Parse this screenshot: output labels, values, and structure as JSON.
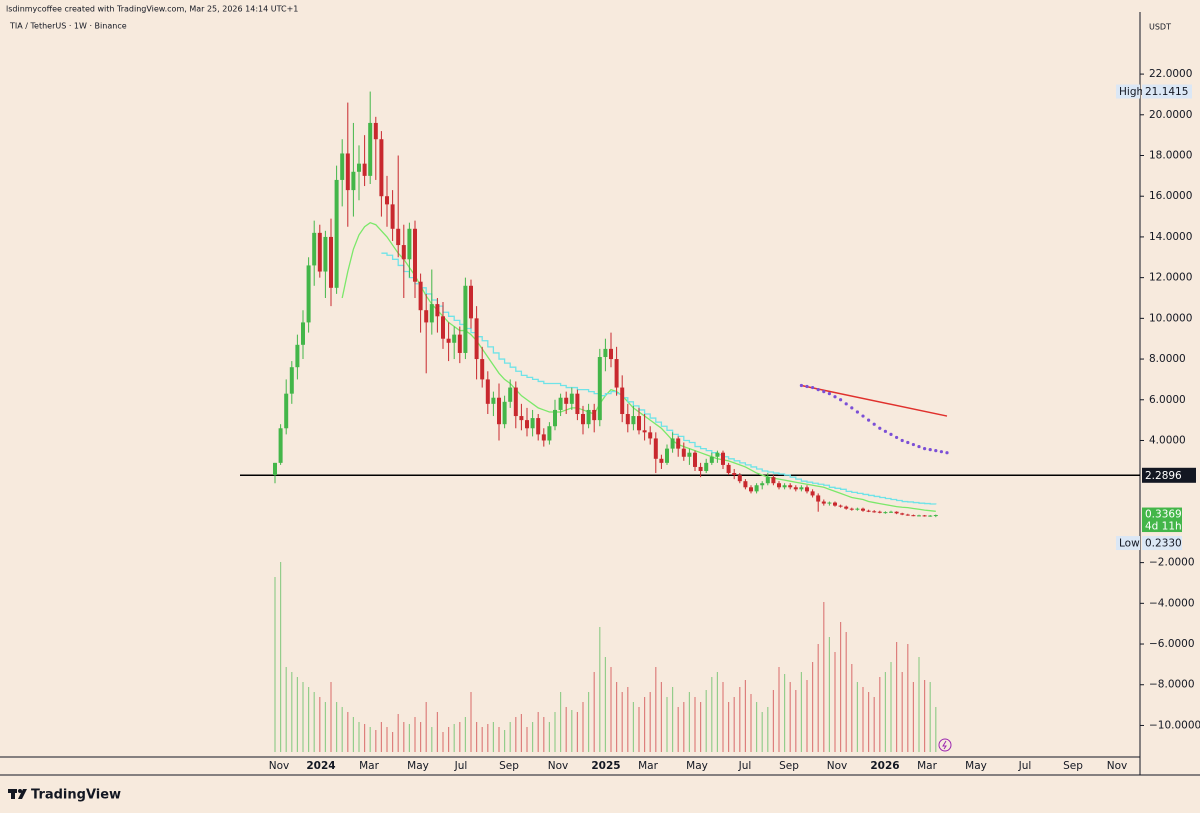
{
  "chart_data": {
    "type": "candlestick",
    "header": "lsdinmycoffee created with TradingView.com, Mar 25, 2026 14:14 UTC+1",
    "title": "TIA / TetherUS · 1W · Binance",
    "currency": "USDT",
    "brand": "TradingView",
    "up_color": "#43b649",
    "down_color": "#c8282e",
    "ylim": [
      -11.55,
      25.05
    ],
    "yticks": [
      {
        "value": 22,
        "label": "22.0000"
      },
      {
        "value": 20,
        "label": "20.0000"
      },
      {
        "value": 18,
        "label": "18.0000"
      },
      {
        "value": 16,
        "label": "16.0000"
      },
      {
        "value": 14,
        "label": "14.0000"
      },
      {
        "value": 12,
        "label": "12.0000"
      },
      {
        "value": 10,
        "label": "10.0000"
      },
      {
        "value": 8,
        "label": "8.0000"
      },
      {
        "value": 6,
        "label": "6.0000"
      },
      {
        "value": 4,
        "label": "4.0000"
      },
      {
        "value": -2,
        "label": "−2.0000"
      },
      {
        "value": -4,
        "label": "−4.0000"
      },
      {
        "value": -6,
        "label": "−6.0000"
      },
      {
        "value": -8,
        "label": "−8.0000"
      },
      {
        "value": -10,
        "label": "−10.0000"
      }
    ],
    "xlabels": [
      "Nov",
      "2024",
      "Mar",
      "May",
      "Jul",
      "Sep",
      "Nov",
      "2025",
      "Mar",
      "May",
      "Jul",
      "Sep",
      "Nov",
      "2026",
      "Mar",
      "May",
      "Jul",
      "Sep",
      "Nov"
    ],
    "high": {
      "name": "High",
      "value": 21.1415
    },
    "low": {
      "name": "Low",
      "value": 0.233,
      "label": "0.2330"
    },
    "last": {
      "value": 0.3369,
      "countdown": "4d 11h"
    },
    "level": {
      "value": 2.2896,
      "color": "#000000"
    },
    "candles": [
      [
        2.3,
        2.9,
        1.9,
        2.9
      ],
      [
        2.9,
        4.8,
        2.8,
        4.6
      ],
      [
        4.6,
        7.0,
        4.3,
        6.3
      ],
      [
        6.3,
        7.9,
        5.8,
        7.6
      ],
      [
        7.6,
        9.2,
        7.0,
        8.7
      ],
      [
        8.7,
        10.4,
        8.0,
        9.8
      ],
      [
        9.8,
        13.0,
        9.3,
        12.6
      ],
      [
        12.6,
        14.8,
        11.6,
        14.2
      ],
      [
        14.2,
        14.6,
        12.0,
        12.3
      ],
      [
        12.3,
        14.3,
        11.0,
        14.0
      ],
      [
        14.0,
        14.9,
        10.6,
        11.5
      ],
      [
        11.5,
        17.5,
        11.2,
        16.8
      ],
      [
        16.8,
        18.8,
        15.5,
        18.1
      ],
      [
        18.1,
        20.6,
        14.5,
        16.3
      ],
      [
        16.3,
        19.6,
        15.0,
        17.2
      ],
      [
        17.2,
        18.5,
        15.8,
        17.6
      ],
      [
        17.6,
        19.0,
        16.5,
        17.0
      ],
      [
        17.0,
        21.1415,
        16.6,
        19.6
      ],
      [
        19.6,
        19.9,
        16.8,
        18.8
      ],
      [
        18.8,
        19.2,
        15.0,
        16.0
      ],
      [
        16.0,
        17.0,
        14.5,
        15.6
      ],
      [
        15.6,
        16.3,
        13.8,
        14.4
      ],
      [
        14.4,
        18.0,
        13.0,
        13.6
      ],
      [
        13.6,
        14.6,
        11.0,
        12.9
      ],
      [
        12.9,
        14.7,
        12.0,
        14.4
      ],
      [
        14.4,
        14.8,
        11.0,
        11.8
      ],
      [
        11.8,
        12.2,
        9.3,
        10.4
      ],
      [
        10.4,
        11.2,
        7.3,
        9.8
      ],
      [
        9.8,
        12.4,
        9.2,
        10.7
      ],
      [
        10.7,
        11.0,
        9.3,
        10.1
      ],
      [
        10.1,
        10.8,
        8.5,
        9.0
      ],
      [
        9.0,
        9.8,
        7.9,
        8.8
      ],
      [
        8.8,
        9.6,
        8.0,
        9.2
      ],
      [
        9.2,
        9.6,
        7.8,
        8.3
      ],
      [
        8.3,
        12.0,
        8.0,
        11.6
      ],
      [
        11.6,
        11.9,
        9.5,
        10.0
      ],
      [
        10.0,
        10.6,
        7.0,
        8.0
      ],
      [
        8.0,
        8.6,
        6.6,
        7.0
      ],
      [
        7.0,
        7.4,
        5.3,
        5.8
      ],
      [
        5.8,
        6.4,
        5.2,
        6.1
      ],
      [
        6.1,
        6.8,
        4.0,
        4.8
      ],
      [
        4.8,
        6.2,
        4.6,
        5.9
      ],
      [
        5.9,
        7.0,
        5.6,
        6.6
      ],
      [
        6.6,
        6.9,
        4.6,
        5.2
      ],
      [
        5.2,
        5.8,
        4.5,
        5.0
      ],
      [
        5.0,
        5.6,
        4.2,
        4.6
      ],
      [
        4.6,
        5.5,
        4.2,
        5.1
      ],
      [
        5.1,
        5.3,
        4.0,
        4.3
      ],
      [
        4.3,
        4.6,
        3.7,
        4.0
      ],
      [
        4.0,
        4.9,
        3.8,
        4.7
      ],
      [
        4.7,
        6.0,
        4.5,
        5.5
      ],
      [
        5.5,
        6.3,
        5.2,
        6.1
      ],
      [
        6.1,
        6.4,
        5.3,
        5.8
      ],
      [
        5.8,
        6.6,
        5.5,
        6.3
      ],
      [
        6.3,
        6.5,
        5.0,
        5.3
      ],
      [
        5.3,
        5.7,
        4.3,
        4.8
      ],
      [
        4.8,
        5.8,
        4.6,
        5.5
      ],
      [
        5.5,
        5.8,
        4.4,
        5.0
      ],
      [
        5.0,
        8.5,
        4.7,
        8.1
      ],
      [
        8.1,
        9.0,
        7.4,
        8.5
      ],
      [
        8.5,
        9.3,
        7.6,
        8.0
      ],
      [
        8.0,
        8.6,
        6.2,
        6.6
      ],
      [
        6.6,
        7.2,
        4.9,
        5.3
      ],
      [
        5.3,
        5.8,
        4.4,
        4.8
      ],
      [
        4.8,
        5.7,
        4.5,
        5.2
      ],
      [
        5.2,
        5.6,
        4.3,
        4.5
      ],
      [
        4.5,
        5.3,
        4.0,
        4.4
      ],
      [
        4.4,
        4.7,
        3.8,
        4.1
      ],
      [
        4.1,
        4.4,
        2.4,
        3.1
      ],
      [
        3.1,
        3.3,
        2.6,
        2.9
      ],
      [
        2.9,
        3.8,
        2.8,
        3.6
      ],
      [
        3.6,
        4.4,
        3.4,
        4.1
      ],
      [
        4.1,
        4.2,
        3.2,
        3.6
      ],
      [
        3.6,
        3.9,
        3.0,
        3.2
      ],
      [
        3.2,
        3.6,
        2.8,
        3.4
      ],
      [
        3.4,
        3.5,
        2.5,
        2.7
      ],
      [
        2.7,
        2.9,
        2.2,
        2.5
      ],
      [
        2.5,
        3.1,
        2.4,
        2.9
      ],
      [
        2.9,
        3.4,
        2.8,
        3.2
      ],
      [
        3.2,
        3.5,
        2.9,
        3.4
      ],
      [
        3.4,
        3.5,
        2.6,
        2.8
      ],
      [
        2.8,
        2.9,
        2.3,
        2.4
      ],
      [
        2.4,
        2.6,
        2.1,
        2.3
      ],
      [
        2.3,
        2.4,
        1.9,
        2.0
      ],
      [
        2.0,
        2.1,
        1.6,
        1.7
      ],
      [
        1.7,
        1.8,
        1.4,
        1.5
      ],
      [
        1.5,
        1.9,
        1.4,
        1.8
      ],
      [
        1.8,
        2.0,
        1.6,
        1.9
      ],
      [
        1.9,
        2.4,
        1.8,
        2.2
      ],
      [
        2.2,
        2.3,
        1.8,
        1.9
      ],
      [
        1.9,
        2.0,
        1.6,
        1.7
      ],
      [
        1.7,
        1.9,
        1.6,
        1.8
      ],
      [
        1.8,
        1.9,
        1.6,
        1.7
      ],
      [
        1.7,
        1.8,
        1.5,
        1.6
      ],
      [
        1.6,
        1.8,
        1.5,
        1.7
      ],
      [
        1.7,
        1.8,
        1.4,
        1.5
      ],
      [
        1.5,
        1.6,
        1.2,
        1.3
      ],
      [
        1.3,
        1.4,
        0.5,
        1.0
      ],
      [
        1.0,
        1.1,
        0.8,
        0.9
      ],
      [
        0.9,
        1.0,
        0.8,
        0.95
      ],
      [
        0.95,
        1.0,
        0.75,
        0.8
      ],
      [
        0.8,
        0.85,
        0.7,
        0.75
      ],
      [
        0.75,
        0.8,
        0.6,
        0.65
      ],
      [
        0.65,
        0.7,
        0.55,
        0.6
      ],
      [
        0.6,
        0.7,
        0.55,
        0.65
      ],
      [
        0.65,
        0.7,
        0.5,
        0.55
      ],
      [
        0.55,
        0.6,
        0.48,
        0.52
      ],
      [
        0.52,
        0.58,
        0.45,
        0.5
      ],
      [
        0.5,
        0.55,
        0.42,
        0.46
      ],
      [
        0.46,
        0.52,
        0.4,
        0.48
      ],
      [
        0.48,
        0.55,
        0.44,
        0.5
      ],
      [
        0.5,
        0.52,
        0.38,
        0.42
      ],
      [
        0.42,
        0.45,
        0.33,
        0.36
      ],
      [
        0.36,
        0.4,
        0.3,
        0.33
      ],
      [
        0.33,
        0.36,
        0.28,
        0.31
      ],
      [
        0.31,
        0.35,
        0.27,
        0.32
      ],
      [
        0.32,
        0.34,
        0.26,
        0.3
      ],
      [
        0.3,
        0.34,
        0.25,
        0.31
      ],
      [
        0.31,
        0.36,
        0.233,
        0.3369
      ]
    ],
    "volume": [
      175,
      190,
      85,
      80,
      75,
      70,
      65,
      60,
      55,
      50,
      70,
      50,
      45,
      40,
      35,
      30,
      28,
      25,
      22,
      30,
      25,
      20,
      38,
      30,
      28,
      35,
      30,
      50,
      25,
      40,
      20,
      25,
      28,
      30,
      35,
      60,
      30,
      25,
      28,
      30,
      25,
      22,
      30,
      35,
      38,
      25,
      30,
      40,
      35,
      30,
      40,
      60,
      45,
      42,
      40,
      50,
      60,
      80,
      125,
      95,
      85,
      70,
      60,
      65,
      50,
      45,
      55,
      60,
      85,
      70,
      55,
      65,
      45,
      50,
      60,
      55,
      50,
      62,
      75,
      80,
      70,
      50,
      55,
      65,
      72,
      58,
      50,
      40,
      45,
      62,
      85,
      78,
      70,
      62,
      80,
      72,
      90,
      108,
      150,
      115,
      100,
      130,
      120,
      88,
      70,
      65,
      60,
      55,
      75,
      80,
      90,
      110,
      80,
      108,
      70,
      95,
      72,
      70,
      45
    ],
    "lines": [
      {
        "color": "#7be86a",
        "step": false,
        "values": [
          null,
          null,
          null,
          null,
          null,
          null,
          null,
          null,
          null,
          null,
          null,
          null,
          11.0,
          12.3,
          13.4,
          14.1,
          14.5,
          14.7,
          14.6,
          14.3,
          14.0,
          13.6,
          13.2,
          12.9,
          12.5,
          12.1,
          11.6,
          11.1,
          10.7,
          10.4,
          10.1,
          9.8,
          9.6,
          9.4,
          9.4,
          9.2,
          8.9,
          8.5,
          8.1,
          7.7,
          7.3,
          7.0,
          6.8,
          6.5,
          6.2,
          6.0,
          5.8,
          5.6,
          5.5,
          5.4,
          5.4,
          5.4,
          5.5,
          5.6,
          5.6,
          5.5,
          5.4,
          5.3,
          5.8,
          6.2,
          6.5,
          6.4,
          6.2,
          5.9,
          5.6,
          5.4,
          5.2,
          5.0,
          4.8,
          4.6,
          4.3,
          4.0,
          3.8,
          3.7,
          3.6,
          3.5,
          3.4,
          3.3,
          3.2,
          3.1,
          3.05,
          3.0,
          2.9,
          2.8,
          2.7,
          2.55,
          2.4,
          2.3,
          2.2,
          2.15,
          2.1,
          2.05,
          2.0,
          1.95,
          1.9,
          1.85,
          1.8,
          1.75,
          1.7,
          1.6,
          1.5,
          1.4,
          1.3,
          1.2,
          1.15,
          1.1,
          1.0,
          0.95,
          0.9,
          0.85,
          0.8,
          0.75,
          0.72,
          0.7,
          0.66,
          0.62,
          0.58,
          0.55,
          0.52
        ]
      },
      {
        "color": "#6fe3e8",
        "step": true,
        "values": [
          null,
          null,
          null,
          null,
          null,
          null,
          null,
          null,
          null,
          null,
          null,
          null,
          null,
          null,
          null,
          null,
          null,
          null,
          null,
          13.2,
          13.1,
          12.9,
          12.6,
          12.3,
          12.0,
          11.7,
          11.5,
          11.2,
          10.9,
          10.6,
          10.3,
          10.1,
          9.9,
          9.7,
          9.5,
          9.3,
          9.1,
          8.9,
          8.6,
          8.3,
          8.0,
          7.8,
          7.6,
          7.4,
          7.2,
          7.1,
          7.0,
          6.9,
          6.8,
          6.8,
          6.8,
          6.7,
          6.6,
          6.6,
          6.5,
          6.5,
          6.4,
          6.3,
          6.2,
          6.3,
          6.4,
          6.3,
          6.1,
          5.9,
          5.7,
          5.5,
          5.3,
          5.1,
          4.9,
          4.7,
          4.5,
          4.3,
          4.2,
          4.0,
          3.9,
          3.7,
          3.6,
          3.5,
          3.4,
          3.3,
          3.2,
          3.1,
          3.0,
          2.9,
          2.8,
          2.7,
          2.6,
          2.5,
          2.45,
          2.4,
          2.35,
          2.3,
          2.2,
          2.1,
          2.0,
          1.95,
          1.9,
          1.85,
          1.8,
          1.7,
          1.65,
          1.6,
          1.5,
          1.45,
          1.4,
          1.35,
          1.3,
          1.25,
          1.2,
          1.15,
          1.1,
          1.05,
          1.0,
          0.98,
          0.95,
          0.92,
          0.9,
          0.88,
          0.86
        ]
      }
    ],
    "projections": [
      {
        "color": "#e0302c",
        "style": "solid",
        "x": [
          94,
          120
        ],
        "values": [
          6.7,
          5.2
        ]
      },
      {
        "color": "#7b4fd6",
        "style": "dotted",
        "x": [
          94,
          95,
          96,
          97,
          98,
          99,
          100,
          101,
          102,
          103,
          104,
          105,
          106,
          107,
          108,
          109,
          110,
          111,
          112,
          113,
          114,
          115,
          116,
          117,
          118,
          119,
          120
        ],
        "values": [
          6.7,
          6.65,
          6.6,
          6.5,
          6.4,
          6.3,
          6.15,
          6.0,
          5.8,
          5.6,
          5.4,
          5.2,
          5.0,
          4.8,
          4.6,
          4.45,
          4.3,
          4.15,
          4.0,
          3.9,
          3.8,
          3.7,
          3.6,
          3.55,
          3.5,
          3.45,
          3.4
        ]
      }
    ]
  }
}
